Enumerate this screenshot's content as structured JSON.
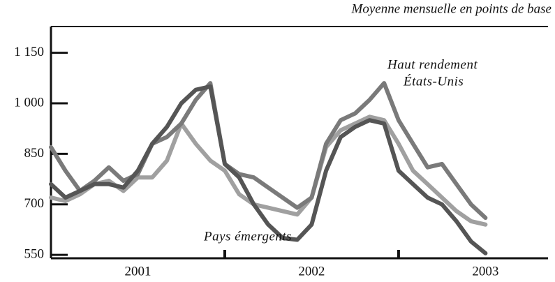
{
  "chart_data": {
    "type": "line",
    "subtitle": "Moyenne mensuelle en points de base",
    "x": [
      2001,
      2001.083,
      2001.167,
      2001.25,
      2001.333,
      2001.417,
      2001.5,
      2001.583,
      2001.667,
      2001.75,
      2001.833,
      2001.917,
      2002,
      2002.083,
      2002.167,
      2002.25,
      2002.333,
      2002.417,
      2002.5,
      2002.583,
      2002.667,
      2002.75,
      2002.833,
      2002.917,
      2003,
      2003.083,
      2003.167,
      2003.25,
      2003.333,
      2003.417,
      2003.5
    ],
    "series": [
      {
        "name": "Pays émergents",
        "color": "#555555",
        "values": [
          760,
          720,
          740,
          760,
          760,
          750,
          800,
          880,
          930,
          1000,
          1040,
          1050,
          820,
          780,
          700,
          640,
          600,
          595,
          640,
          800,
          900,
          930,
          950,
          940,
          800,
          760,
          720,
          700,
          650,
          590,
          555
        ]
      },
      {
        "name": "Haut rendement États-Unis",
        "color": "#7a7a7a",
        "values": [
          870,
          800,
          740,
          770,
          810,
          770,
          790,
          880,
          900,
          940,
          1010,
          1060,
          820,
          790,
          780,
          750,
          720,
          690,
          720,
          880,
          950,
          970,
          1010,
          1060,
          950,
          880,
          810,
          820,
          760,
          700,
          660
        ]
      },
      {
        "color": "#a0a0a0",
        "values": [
          720,
          710,
          730,
          760,
          770,
          740,
          780,
          780,
          830,
          940,
          880,
          830,
          800,
          730,
          700,
          690,
          680,
          670,
          720,
          870,
          920,
          940,
          960,
          950,
          880,
          800,
          760,
          720,
          680,
          650,
          640
        ]
      }
    ],
    "annotations": [
      "Haut rendement",
      "États-Unis",
      "Pays émergents"
    ],
    "xlim": [
      2001,
      2003.86
    ],
    "xticks": [
      {
        "value": 2001.5,
        "label": "2001"
      },
      {
        "value": 2002.5,
        "label": "2002"
      },
      {
        "value": 2003.5,
        "label": "2003"
      }
    ],
    "year_marks": [
      2002,
      2003
    ],
    "ylim": [
      540,
      1228
    ],
    "yticks": [
      550,
      700,
      850,
      {
        "value": 1000,
        "label": "1 000"
      },
      {
        "value": 1150,
        "label": "1 150"
      }
    ],
    "grid": false
  }
}
